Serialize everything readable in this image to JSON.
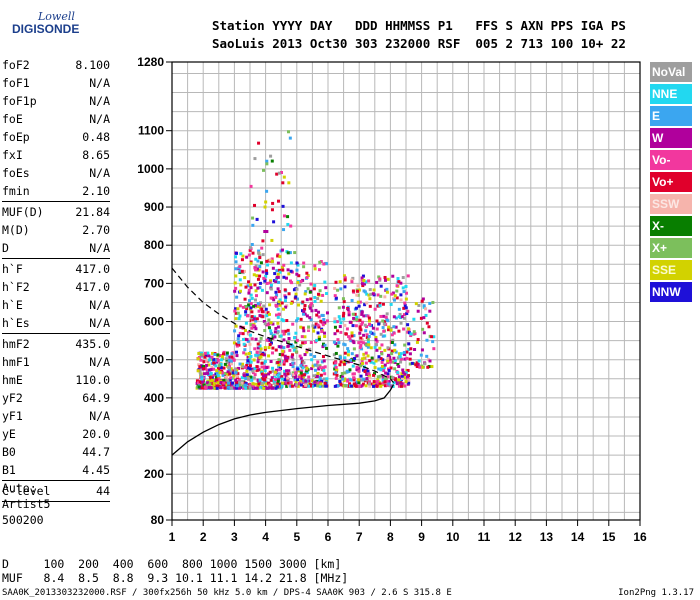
{
  "logo": {
    "line1": "Lowell",
    "line2": "DIGISONDE"
  },
  "header": {
    "line1": "Station YYYY DAY   DDD HHMMSS P1   FFS S AXN PPS IGA PS",
    "line2": "SaoLuis 2013 Oct30 303 232000 RSF  005 2 713 100 10+ 22"
  },
  "params": [
    {
      "name": "foF2",
      "value": "8.100"
    },
    {
      "name": "foF1",
      "value": "N/A"
    },
    {
      "name": "foF1p",
      "value": "N/A"
    },
    {
      "name": "foE",
      "value": "N/A"
    },
    {
      "name": "foEp",
      "value": "0.48"
    },
    {
      "name": "fxI",
      "value": "8.65"
    },
    {
      "name": "foEs",
      "value": "N/A"
    },
    {
      "name": "fmin",
      "value": "2.10"
    },
    {
      "sep": true
    },
    {
      "name": "MUF(D)",
      "value": "21.84"
    },
    {
      "name": "M(D)",
      "value": "2.70"
    },
    {
      "name": "D",
      "value": "N/A"
    },
    {
      "sep": true
    },
    {
      "name": "h`F",
      "value": "417.0"
    },
    {
      "name": "h`F2",
      "value": "417.0"
    },
    {
      "name": "h`E",
      "value": "N/A"
    },
    {
      "name": "h`Es",
      "value": "N/A"
    },
    {
      "sep": true
    },
    {
      "name": "hmF2",
      "value": "435.0"
    },
    {
      "name": "hmF1",
      "value": "N/A"
    },
    {
      "name": "hmE",
      "value": "110.0"
    },
    {
      "name": "yF2",
      "value": "64.9"
    },
    {
      "name": "yF1",
      "value": "N/A"
    },
    {
      "name": "yE",
      "value": "20.0"
    },
    {
      "name": "B0",
      "value": "44.7"
    },
    {
      "name": "B1",
      "value": "4.45"
    },
    {
      "sep": true
    },
    {
      "name": "C-level",
      "value": "44"
    },
    {
      "sep": true
    }
  ],
  "auto": {
    "line1": "Auto:",
    "line2": "Artist5",
    "line3": "500200"
  },
  "legend": [
    {
      "label": "NoVal",
      "color": "#9e9e9e"
    },
    {
      "label": "NNE",
      "color": "#22d8f0"
    },
    {
      "label": "E",
      "color": "#3ba6f0"
    },
    {
      "label": "W",
      "color": "#b0009c"
    },
    {
      "label": "Vo-",
      "color": "#f2379e"
    },
    {
      "label": "Vo+",
      "color": "#e0002b"
    },
    {
      "label": "SSW",
      "color": "#f6b4ac"
    },
    {
      "label": "X-",
      "color": "#087e00"
    },
    {
      "label": "X+",
      "color": "#7cbf5c"
    },
    {
      "label": "SSE",
      "color": "#d2d200"
    },
    {
      "label": "NNW",
      "color": "#1e10d8"
    }
  ],
  "table": {
    "d_row": "D     100  200  400  600  800 1000 1500 3000 [km]",
    "muf_row": "MUF   8.4  8.5  8.8  9.3 10.1 11.1 14.2 21.8 [MHz]"
  },
  "footer": {
    "left": "SAA0K_2013303232000.RSF / 300fx256h 50 kHz 5.0 km / DPS-4 SAA0K 903 / 2.6 S 315.8 E",
    "right": "Ion2Png 1.3.17"
  },
  "chart_data": {
    "type": "scatter",
    "xlim": [
      1,
      16
    ],
    "ylim": [
      80,
      1280
    ],
    "x_ticks": [
      1,
      2,
      3,
      4,
      5,
      6,
      7,
      8,
      9,
      10,
      11,
      12,
      13,
      14,
      15,
      16
    ],
    "y_ticks": [
      80,
      200,
      300,
      400,
      500,
      600,
      700,
      800,
      900,
      1000,
      1100,
      1280
    ],
    "grid": true,
    "xlabel": "",
    "ylabel": "",
    "clusters": [
      {
        "fmin": 1.8,
        "fmax": 3.0,
        "hmin": 425,
        "hmax": 520,
        "count": 320
      },
      {
        "fmin": 3.0,
        "fmax": 4.5,
        "hmin": 425,
        "hmax": 780,
        "count": 520
      },
      {
        "fmin": 4.5,
        "fmax": 6.0,
        "hmin": 430,
        "hmax": 760,
        "count": 380
      },
      {
        "fmin": 6.2,
        "fmax": 7.3,
        "hmin": 430,
        "hmax": 720,
        "count": 260
      },
      {
        "fmin": 7.3,
        "fmax": 8.6,
        "hmin": 430,
        "hmax": 720,
        "count": 300
      },
      {
        "fmin": 8.6,
        "fmax": 9.4,
        "hmin": 480,
        "hmax": 660,
        "count": 60
      },
      {
        "fmin": 3.5,
        "fmax": 5.0,
        "hmin": 780,
        "hmax": 1100,
        "count": 50
      }
    ],
    "profile_curve": [
      [
        1,
        250
      ],
      [
        1.5,
        285
      ],
      [
        2,
        310
      ],
      [
        2.5,
        330
      ],
      [
        3,
        345
      ],
      [
        3.5,
        355
      ],
      [
        4,
        362
      ],
      [
        5,
        372
      ],
      [
        6,
        380
      ],
      [
        7,
        386
      ],
      [
        7.5,
        392
      ],
      [
        7.8,
        400
      ],
      [
        8.0,
        420
      ],
      [
        8.1,
        435
      ]
    ],
    "dashed_curve": [
      [
        1,
        740
      ],
      [
        1.5,
        690
      ],
      [
        2,
        650
      ],
      [
        2.5,
        620
      ],
      [
        3,
        595
      ],
      [
        3.5,
        575
      ],
      [
        4,
        560
      ],
      [
        4.5,
        548
      ],
      [
        5,
        535
      ],
      [
        5.5,
        522
      ],
      [
        6,
        510
      ],
      [
        6.5,
        498
      ],
      [
        7,
        486
      ],
      [
        7.5,
        470
      ],
      [
        8.0,
        450
      ],
      [
        8.1,
        440
      ]
    ]
  }
}
